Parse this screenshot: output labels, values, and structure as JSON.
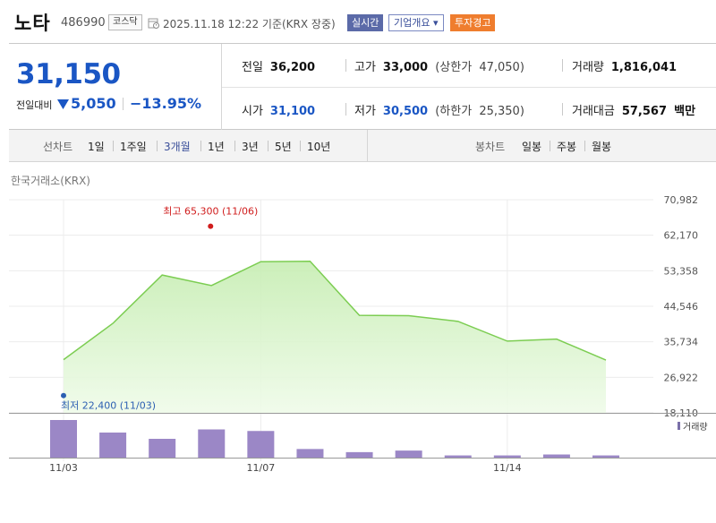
{
  "header": {
    "name": "노타",
    "code": "486990",
    "market": "코스닥",
    "time": "2025.11.18 12:22 기준(KRX 장중)",
    "buttons": [
      "실시간",
      "기업개요 ▾",
      "투자경고"
    ]
  },
  "summary": {
    "price": "31,150",
    "change_label": "전일대비",
    "change": "5,050",
    "change_pct": "−13.95%",
    "prev_close": {
      "label": "전일",
      "value": "36,200"
    },
    "open": {
      "label": "시가",
      "value": "31,100"
    },
    "high": {
      "label": "고가",
      "value": "33,000",
      "limit_label": "(상한가",
      "limit_value": "47,050)"
    },
    "low": {
      "label": "저가",
      "value": "30,500",
      "limit_label": "(하한가",
      "limit_value": "25,350)"
    },
    "volume": {
      "label": "거래량",
      "value": "1,816,041"
    },
    "amount": {
      "label": "거래대금",
      "value": "57,567",
      "unit": "백만"
    }
  },
  "period_bar": {
    "label": "선차트",
    "options": [
      "1일",
      "1주일",
      "3개월",
      "1년",
      "3년",
      "5년",
      "10년"
    ],
    "active": "3개월",
    "candle_label": "봉차트",
    "candle_options": [
      "일봉",
      "주봉",
      "월봉"
    ]
  },
  "chart": {
    "source": "한국거래소(KRX)",
    "max_label": "최고 65,300 (11/06)",
    "min_label": "최저 22,400 (11/03)",
    "volume_label": "거래량"
  },
  "colors": {
    "price_blue": "#1a56c4",
    "line_green": "#7ccd52",
    "volume_purple": "#9b87c6",
    "max_red": "#d01d1d",
    "min_blue": "#2c5fb2"
  },
  "chart_data": {
    "type": "line",
    "x": [
      "11/03",
      "11/04",
      "11/05",
      "11/06",
      "11/07",
      "11/10",
      "11/11",
      "11/12",
      "11/13",
      "11/14",
      "11/17",
      "11/18"
    ],
    "series": [
      {
        "values": [
          31300,
          40300,
          52300,
          49700,
          55600,
          55700,
          42300,
          42200,
          40800,
          35900,
          36400,
          31200
        ]
      }
    ],
    "volume": [
      2.4,
      1.6,
      1.2,
      1.8,
      1.7,
      0.55,
      0.35,
      0.45,
      0.14,
      0.14,
      0.2,
      0.14
    ],
    "high_point": {
      "x": "11/06",
      "value": 65300
    },
    "low_point": {
      "x": "11/03",
      "value": 22400
    },
    "xticks": [
      "11/03",
      "11/07",
      "11/14"
    ],
    "yticks": [
      "70,982",
      "62,170",
      "53,358",
      "44,546",
      "35,734",
      "26,922",
      "18,110"
    ],
    "ylim": [
      18110,
      70982
    ],
    "grid": true,
    "legend": "거래량"
  }
}
